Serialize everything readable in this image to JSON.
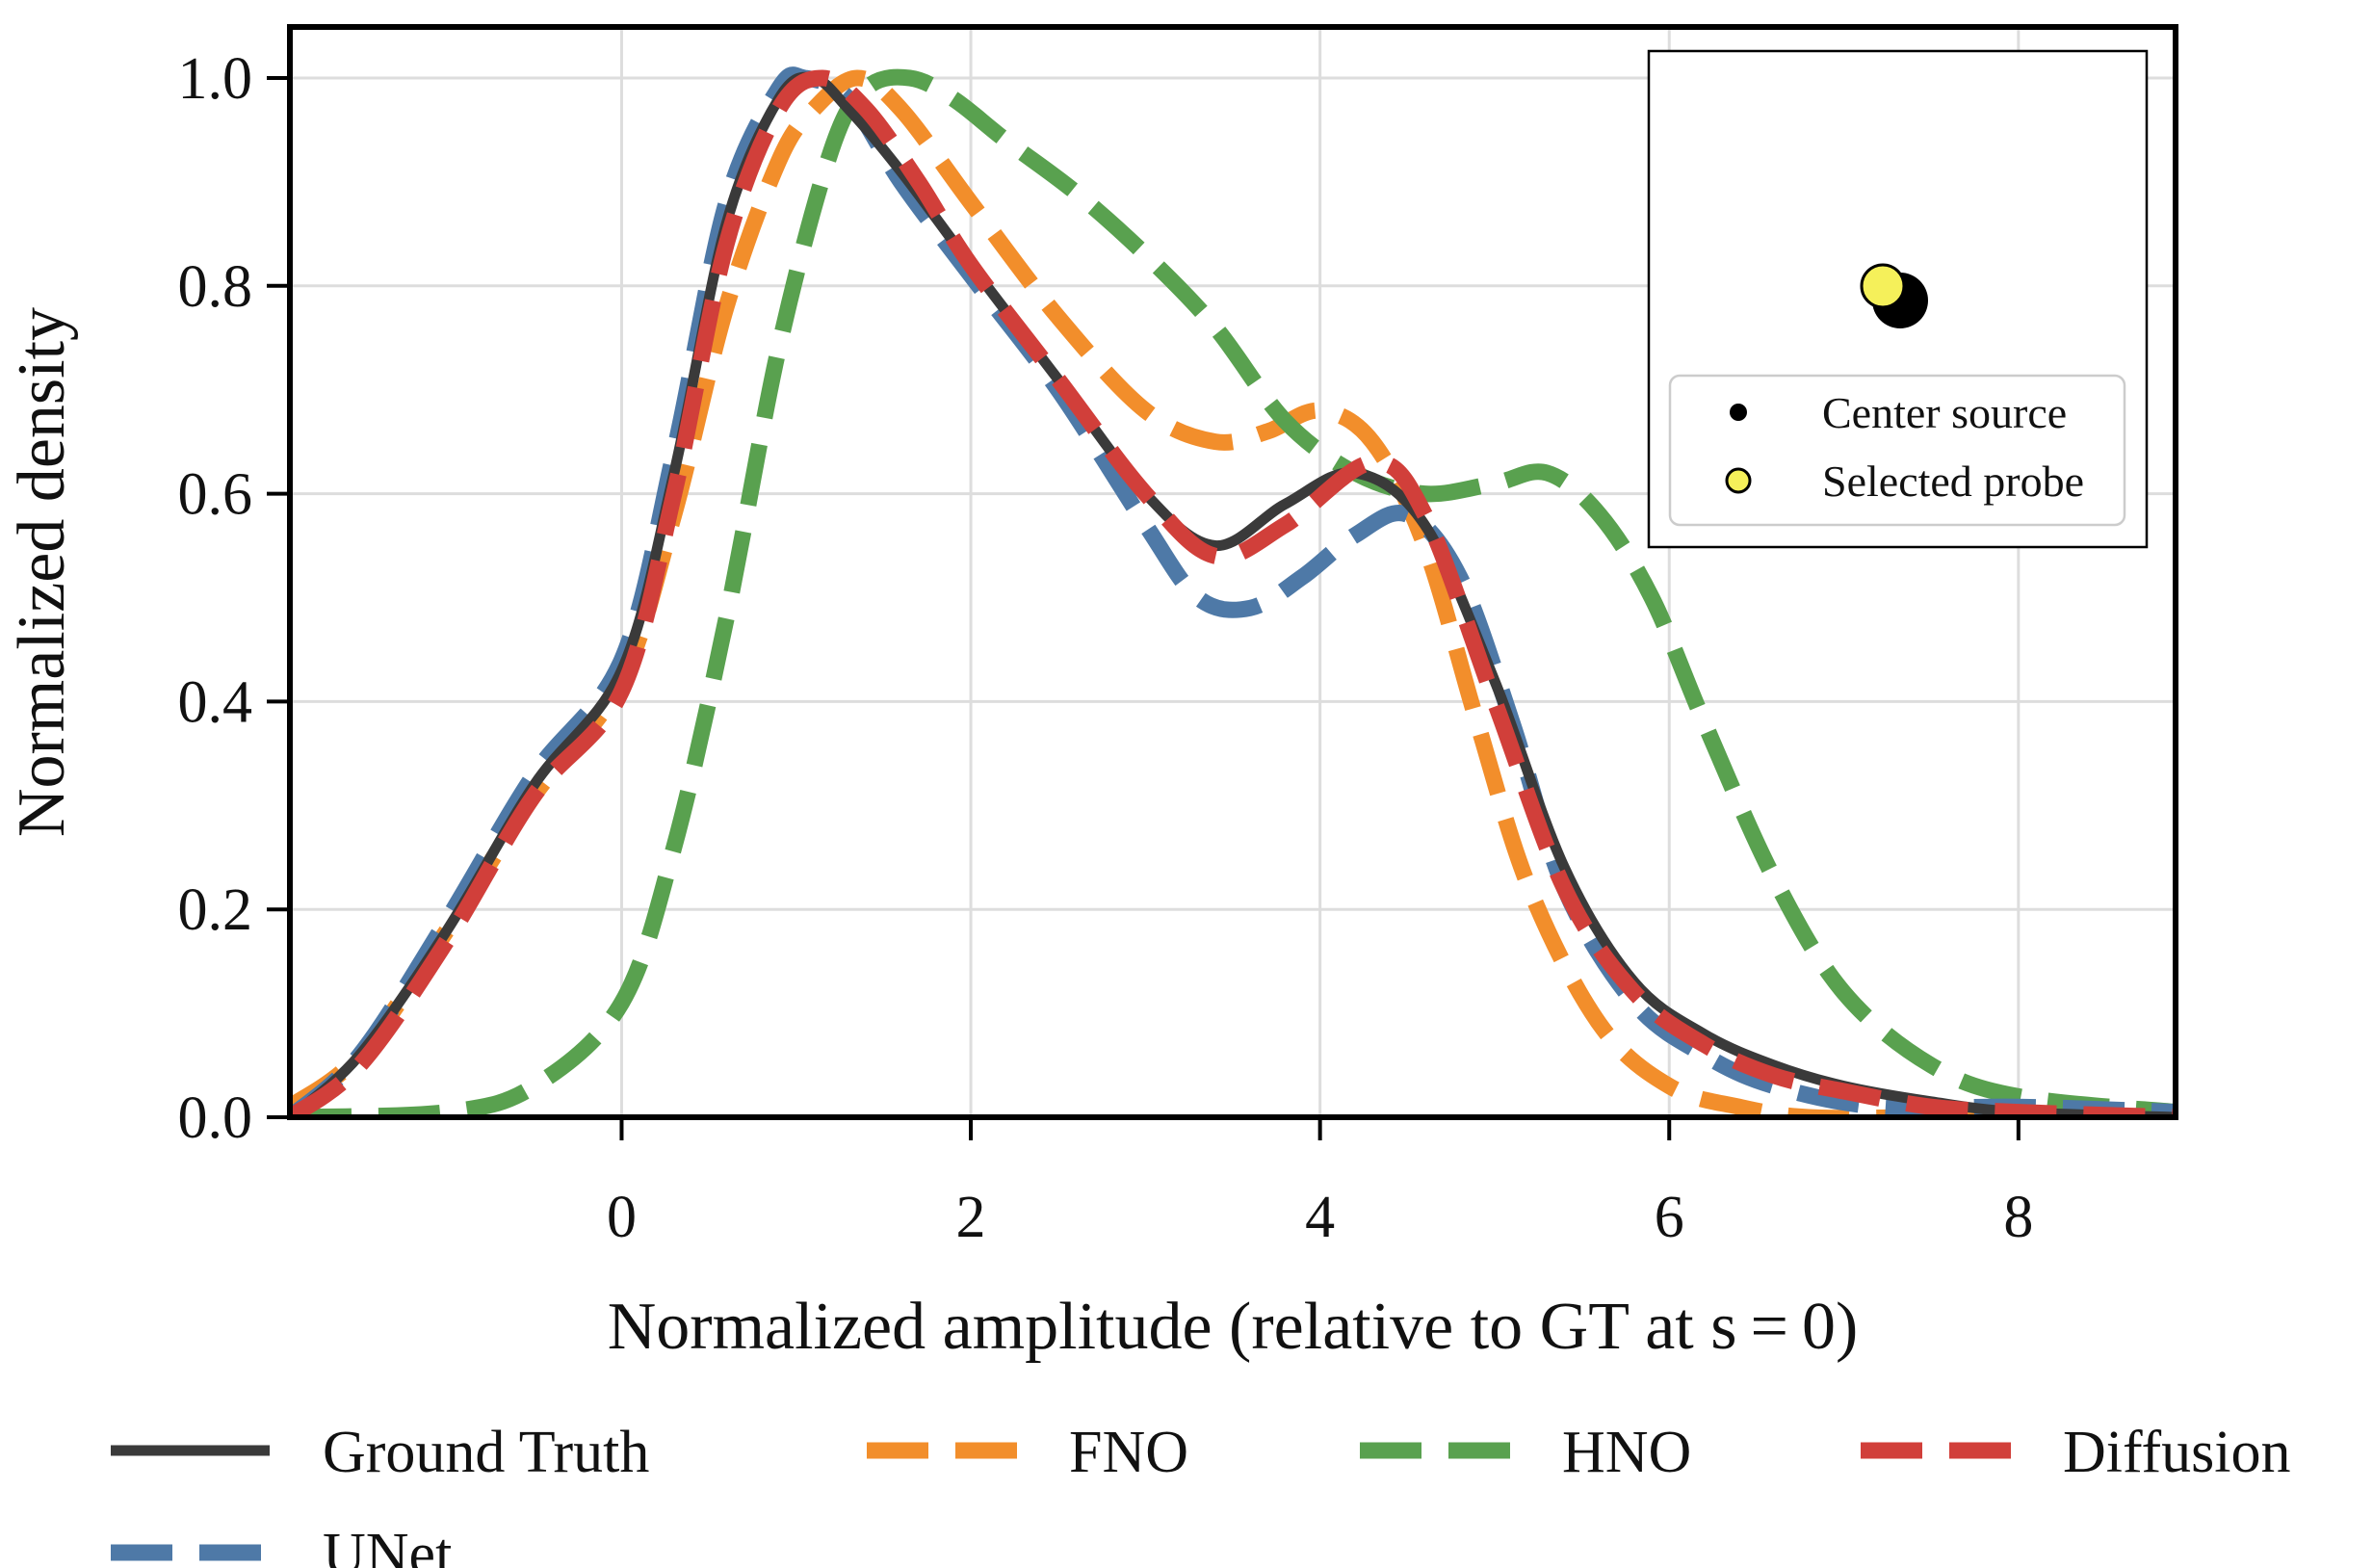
{
  "chart_data": {
    "type": "line",
    "title": "",
    "xlabel": "Normalized amplitude (relative to GT at s = 0)",
    "ylabel": "Normalized density",
    "xlim": [
      -1.9,
      8.9
    ],
    "ylim": [
      0.0,
      1.05
    ],
    "xticks": [
      0,
      2,
      4,
      6,
      8
    ],
    "yticks": [
      0.0,
      0.2,
      0.4,
      0.6,
      0.8,
      1.0
    ],
    "xtick_labels": [
      "0",
      "2",
      "4",
      "6",
      "8"
    ],
    "ytick_labels": [
      "0.0",
      "0.2",
      "0.4",
      "0.6",
      "0.8",
      "1.0"
    ],
    "grid": true,
    "legend_position": "bottom",
    "series": [
      {
        "name": "Ground Truth",
        "style": "solid",
        "color": "#3a3a3a",
        "x": [
          -1.9,
          -1.5,
          -1.0,
          -0.5,
          0.0,
          0.3,
          0.6,
          0.9,
          1.1,
          1.3,
          1.6,
          2.0,
          2.5,
          3.0,
          3.4,
          3.8,
          4.2,
          4.6,
          5.0,
          5.4,
          5.8,
          6.2,
          6.6,
          7.0,
          7.5,
          8.0,
          8.9
        ],
        "y": [
          0.0,
          0.06,
          0.18,
          0.32,
          0.43,
          0.62,
          0.86,
          0.98,
          1.0,
          0.97,
          0.91,
          0.82,
          0.71,
          0.6,
          0.55,
          0.59,
          0.62,
          0.57,
          0.42,
          0.24,
          0.13,
          0.08,
          0.05,
          0.03,
          0.015,
          0.005,
          0.0
        ]
      },
      {
        "name": "FNO",
        "style": "dashed",
        "color": "#f28e2b",
        "x": [
          -1.9,
          -1.5,
          -1.0,
          -0.5,
          0.0,
          0.3,
          0.6,
          0.9,
          1.1,
          1.35,
          1.6,
          2.0,
          2.5,
          3.0,
          3.4,
          3.7,
          4.0,
          4.3,
          4.6,
          4.9,
          5.2,
          5.6,
          6.0,
          6.4,
          6.8,
          7.5,
          8.9
        ],
        "y": [
          0.01,
          0.06,
          0.18,
          0.31,
          0.42,
          0.58,
          0.78,
          0.92,
          0.97,
          1.0,
          0.97,
          0.88,
          0.77,
          0.68,
          0.65,
          0.66,
          0.68,
          0.65,
          0.55,
          0.38,
          0.22,
          0.09,
          0.03,
          0.01,
          0.0,
          0.0,
          0.0
        ]
      },
      {
        "name": "HNO",
        "style": "dashed",
        "color": "#59a14f",
        "x": [
          -1.9,
          -1.0,
          -0.5,
          0.0,
          0.3,
          0.6,
          0.9,
          1.2,
          1.4,
          1.65,
          1.9,
          2.2,
          2.6,
          3.0,
          3.4,
          3.8,
          4.2,
          4.6,
          5.0,
          5.3,
          5.6,
          5.9,
          6.2,
          6.6,
          7.0,
          7.5,
          8.0,
          8.9
        ],
        "y": [
          0.0,
          0.005,
          0.03,
          0.11,
          0.26,
          0.48,
          0.74,
          0.93,
          0.99,
          1.0,
          0.98,
          0.94,
          0.89,
          0.83,
          0.76,
          0.67,
          0.62,
          0.6,
          0.61,
          0.62,
          0.58,
          0.5,
          0.38,
          0.23,
          0.12,
          0.05,
          0.02,
          0.005
        ]
      },
      {
        "name": "Diffusion",
        "style": "dashed",
        "color": "#d13f3a",
        "x": [
          -1.9,
          -1.5,
          -1.0,
          -0.5,
          0.0,
          0.3,
          0.6,
          0.9,
          1.15,
          1.4,
          1.7,
          2.0,
          2.5,
          3.0,
          3.4,
          3.8,
          4.3,
          4.6,
          5.0,
          5.4,
          5.8,
          6.2,
          6.6,
          7.0,
          7.5,
          8.0,
          8.9
        ],
        "y": [
          0.0,
          0.05,
          0.17,
          0.31,
          0.41,
          0.6,
          0.84,
          0.97,
          1.0,
          0.97,
          0.9,
          0.82,
          0.71,
          0.6,
          0.54,
          0.57,
          0.63,
          0.58,
          0.4,
          0.22,
          0.12,
          0.07,
          0.04,
          0.025,
          0.01,
          0.005,
          0.0
        ]
      },
      {
        "name": "UNet",
        "style": "dashed",
        "color": "#4e79a7",
        "x": [
          -1.9,
          -1.5,
          -1.0,
          -0.5,
          0.0,
          0.3,
          0.6,
          0.9,
          1.05,
          1.3,
          1.6,
          2.0,
          2.5,
          3.0,
          3.3,
          3.6,
          3.9,
          4.2,
          4.5,
          4.8,
          5.1,
          5.4,
          5.8,
          6.2,
          6.6,
          7.2,
          8.0,
          8.9
        ],
        "y": [
          0.0,
          0.06,
          0.19,
          0.33,
          0.44,
          0.64,
          0.88,
          0.99,
          1.0,
          0.98,
          0.9,
          0.81,
          0.7,
          0.57,
          0.5,
          0.49,
          0.52,
          0.56,
          0.58,
          0.52,
          0.38,
          0.22,
          0.11,
          0.06,
          0.03,
          0.01,
          0.01,
          0.005
        ]
      }
    ],
    "inset": {
      "legend": [
        {
          "label": "Center source",
          "marker": "black-dot",
          "color": "#000000"
        },
        {
          "label": "Selected probe",
          "marker": "yellow-dot",
          "color": "#f5f05a"
        }
      ]
    }
  }
}
